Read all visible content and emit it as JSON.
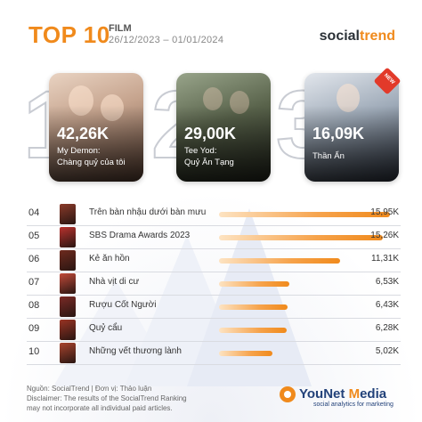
{
  "header": {
    "title": "TOP 10",
    "category": "FILM",
    "date_range": "26/12/2023 – 01/01/2024",
    "brand_prefix": "social",
    "brand_suffix": "trend"
  },
  "colors": {
    "accent": "#f08a1c",
    "dark": "#2b3137",
    "new_badge": "#e23a2a"
  },
  "podium": [
    {
      "rank": "1",
      "value": "42,26K",
      "title_line1": "My Demon:",
      "title_line2": "Chàng quỷ của tôi"
    },
    {
      "rank": "2",
      "value": "29,00K",
      "title_line1": "Tee Yod:",
      "title_line2": "Quỷ Ăn Tạng"
    },
    {
      "rank": "3",
      "value": "16,09K",
      "title_line1": "Thần Ẩn",
      "title_line2": "",
      "badge": "NEW"
    }
  ],
  "list": [
    {
      "rank": "04",
      "title": "Trên bàn nhậu dưới bàn mưu",
      "value": "15,95K",
      "share": 1.0,
      "thumb_color": "#8a3a2a"
    },
    {
      "rank": "05",
      "title": "SBS Drama Awards 2023",
      "value": "15,26K",
      "share": 0.957,
      "thumb_color": "#b8322e"
    },
    {
      "rank": "06",
      "title": "Kẻ ăn hồn",
      "value": "11,31K",
      "share": 0.709,
      "thumb_color": "#6e2a1e"
    },
    {
      "rank": "07",
      "title": "Nhà vịt di cư",
      "value": "6,53K",
      "share": 0.409,
      "thumb_color": "#c04a3a"
    },
    {
      "rank": "08",
      "title": "Rượu Cốt Người",
      "value": "6,43K",
      "share": 0.403,
      "thumb_color": "#7a2a26"
    },
    {
      "rank": "09",
      "title": "Quỷ cẩu",
      "value": "6,28K",
      "share": 0.394,
      "thumb_color": "#9a3424"
    },
    {
      "rank": "10",
      "title": "Những vết thương lành",
      "value": "5,02K",
      "share": 0.315,
      "thumb_color": "#a8442e"
    }
  ],
  "footer": {
    "source": "Nguồn: SocialTrend | Đơn vị: Thảo luận",
    "disclaimer_1": "Disclaimer: The results of the SocialTrend Ranking",
    "disclaimer_2": "may not incorporate all individual paid articles.",
    "logo_you_net": "YouNet ",
    "logo_m": "M",
    "logo_edia": "edia",
    "logo_tagline": "social analytics for marketing"
  }
}
